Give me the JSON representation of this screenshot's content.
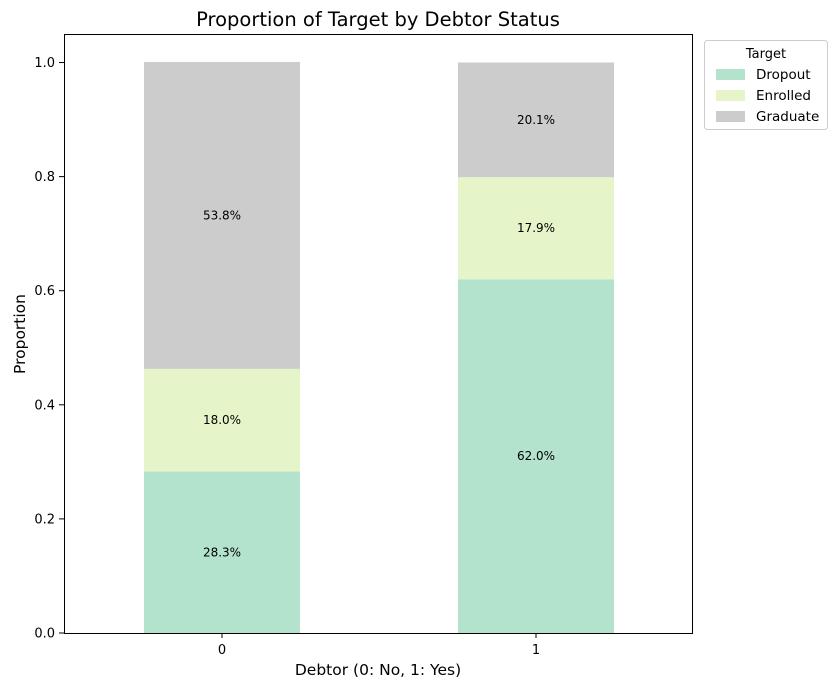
{
  "chart_data": {
    "type": "bar",
    "stacked": true,
    "title": "Proportion of Target by Debtor Status",
    "xlabel": "Debtor (0: No, 1: Yes)",
    "ylabel": "Proportion",
    "categories": [
      "0",
      "1"
    ],
    "ylim": [
      0,
      1.05
    ],
    "yticks": [
      "0.0",
      "0.2",
      "0.4",
      "0.6",
      "0.8",
      "1.0"
    ],
    "grid": false,
    "legend": {
      "title": "Target",
      "placement": "upper-right-outside"
    },
    "series": [
      {
        "name": "Dropout",
        "color": "#b3e2cd",
        "values": [
          0.283,
          0.62
        ],
        "labels": [
          "28.3%",
          "62.0%"
        ]
      },
      {
        "name": "Enrolled",
        "color": "#e6f5c9",
        "values": [
          0.18,
          0.179
        ],
        "labels": [
          "18.0%",
          "17.9%"
        ]
      },
      {
        "name": "Graduate",
        "color": "#cccccc",
        "values": [
          0.538,
          0.201
        ],
        "labels": [
          "53.8%",
          "20.1%"
        ]
      }
    ]
  }
}
